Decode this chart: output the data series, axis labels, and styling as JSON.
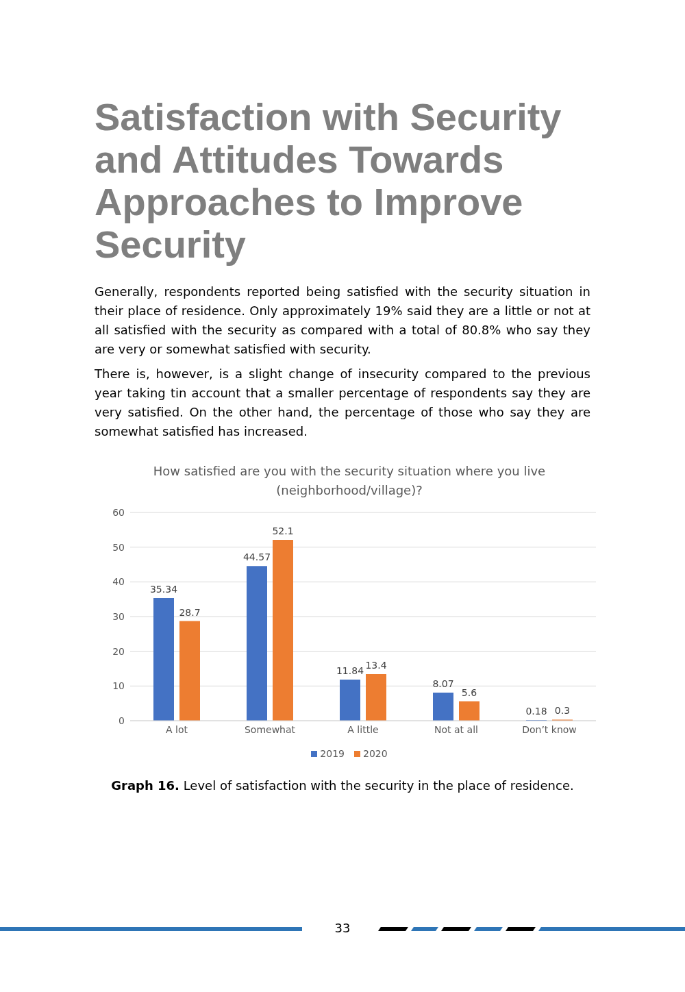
{
  "chart_data": {
    "type": "bar",
    "title": "How satisfied are you with the security situation where you live (neighborhood/village)?",
    "categories": [
      "A lot",
      "Somewhat",
      "A little",
      "Not at all",
      "Don’t know"
    ],
    "series": [
      {
        "name": "2019",
        "color": "#4472c4",
        "values": [
          35.34,
          44.57,
          11.84,
          8.07,
          0.18
        ]
      },
      {
        "name": "2020",
        "color": "#ed7d31",
        "values": [
          28.7,
          52.1,
          13.4,
          5.6,
          0.3
        ]
      }
    ],
    "ylim": [
      0,
      60
    ],
    "yticks": [
      0,
      10,
      20,
      30,
      40,
      50,
      60
    ],
    "grid": "y",
    "legend": "bottom",
    "data_labels": true,
    "annotations": [
      "Satisfaction with Security and Attitudes Towards Approaches to Improve Security",
      "Generally, respondents reported being satisfied with the security situation in their place of residence. Only approximately 19% said they are a little or not at all satisfied with the security as compared with a total of 80.8% who say they are very or somewhat satisfied with security.",
      "There is, however, is a slight change of insecurity compared to the previous year taking tin account that a smaller percentage of respondents say they are very satisfied. On the other hand, the percentage of those who say they are somewhat satisfied has increased.",
      "Graph 16. Level of satisfaction with the security in the place of residence.",
      "33"
    ]
  }
}
